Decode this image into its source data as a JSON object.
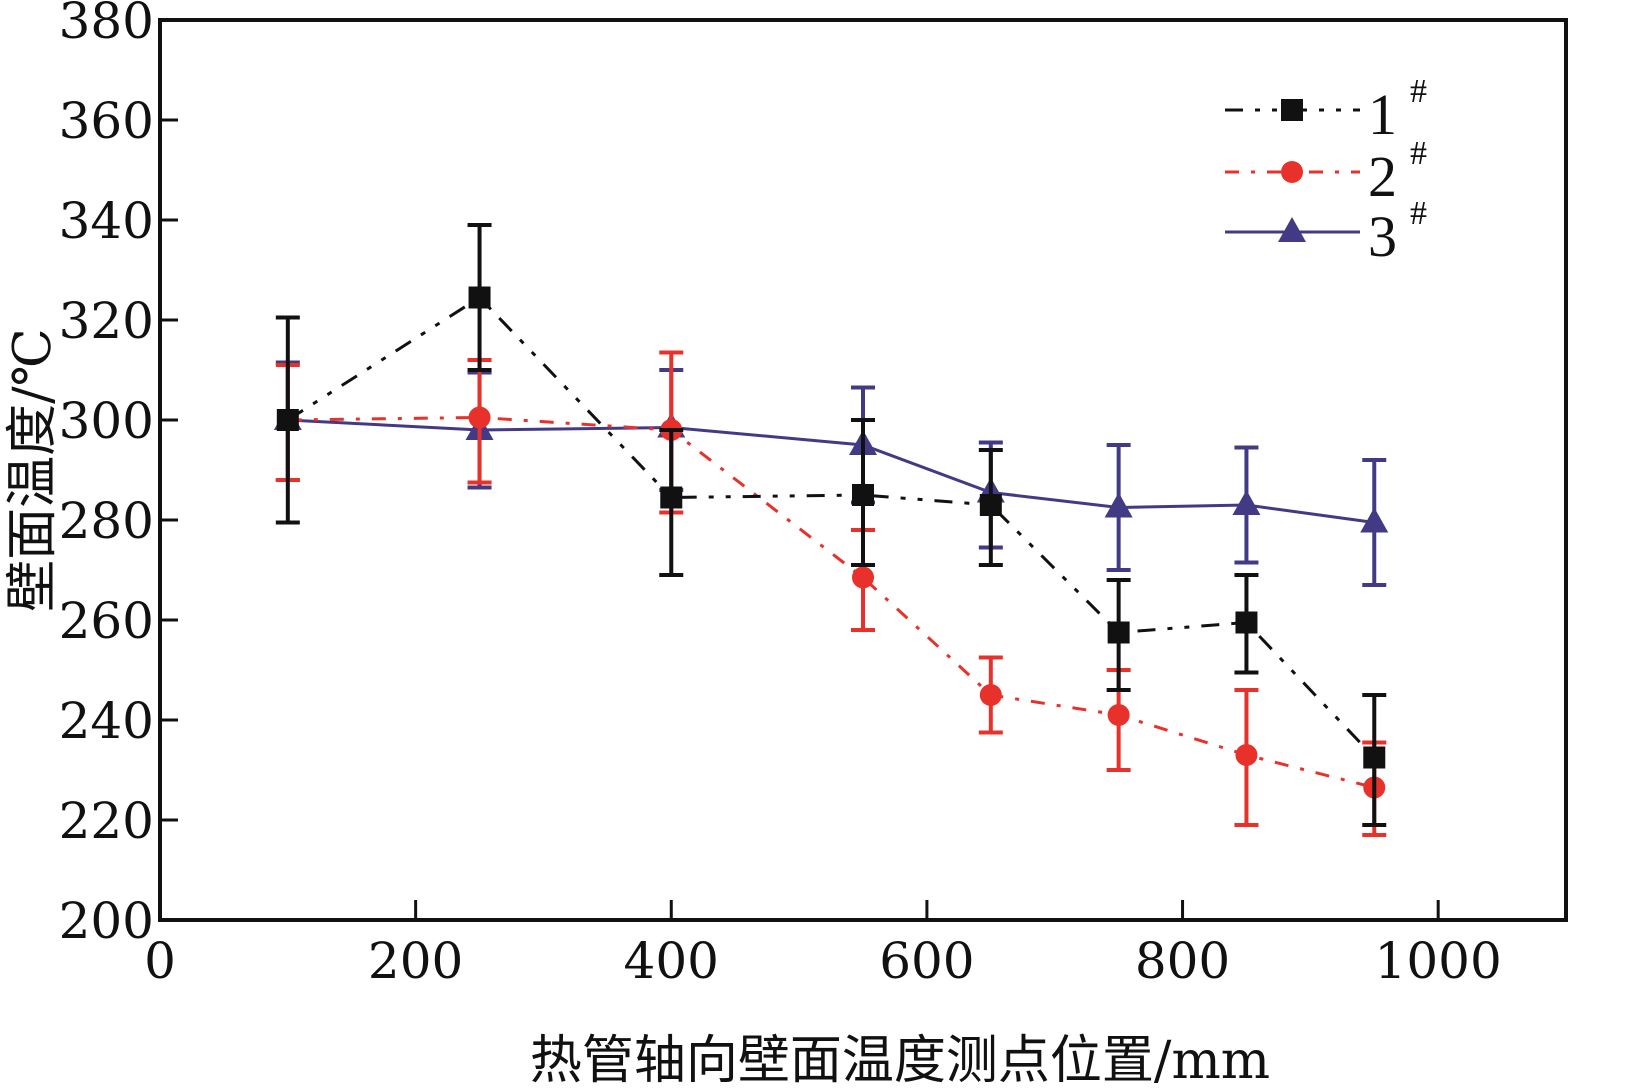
{
  "chart_data": {
    "type": "line",
    "title": "",
    "xlabel": "热管轴向壁面温度测点位置/mm",
    "ylabel": "壁面温度/℃",
    "xlim": [
      0,
      1100
    ],
    "ylim": [
      200,
      380
    ],
    "xticks": [
      0,
      200,
      400,
      600,
      800,
      1000
    ],
    "yticks": [
      200,
      220,
      240,
      260,
      280,
      300,
      320,
      340,
      360,
      380
    ],
    "xtick_labels": [
      "0",
      "200",
      "400",
      "600",
      "800",
      "1000"
    ],
    "ytick_labels": [
      "200",
      "220",
      "240",
      "260",
      "280",
      "300",
      "320",
      "340",
      "360",
      "380"
    ],
    "grid": false,
    "legend_position": "top-right",
    "x": [
      100,
      250,
      400,
      550,
      650,
      750,
      850,
      950
    ],
    "series": [
      {
        "name": "1",
        "name_sup": "#",
        "color": "#111111",
        "marker": "square",
        "line_style": "dash-dot-dot",
        "values": [
          300,
          324.5,
          284.5,
          285,
          283,
          257.5,
          259.5,
          232.5
        ],
        "err_low": [
          279.5,
          310,
          269,
          271,
          271,
          246,
          249.5,
          219
        ],
        "err_high": [
          320.5,
          339,
          298,
          300,
          294,
          268,
          269,
          245
        ]
      },
      {
        "name": "2",
        "name_sup": "#",
        "color": "#e8312a",
        "marker": "circle",
        "line_style": "dash-dot",
        "values": [
          300,
          300.5,
          298,
          268.5,
          245,
          241,
          233,
          226.5
        ],
        "err_low": [
          288,
          287.5,
          281.5,
          258,
          237.5,
          230,
          219,
          217
        ],
        "err_high": [
          311,
          312,
          313.5,
          278,
          252.5,
          250,
          246,
          235.5
        ]
      },
      {
        "name": "3",
        "name_sup": "#",
        "color": "#433a86",
        "marker": "triangle",
        "line_style": "solid",
        "values": [
          300,
          298,
          298.5,
          295,
          285.5,
          282.5,
          283,
          279.5
        ],
        "err_low": [
          288,
          286.5,
          286,
          283.5,
          274.5,
          270,
          271.5,
          267
        ],
        "err_high": [
          311.5,
          309.5,
          310,
          306.5,
          295.5,
          295,
          294.5,
          292
        ]
      }
    ]
  }
}
